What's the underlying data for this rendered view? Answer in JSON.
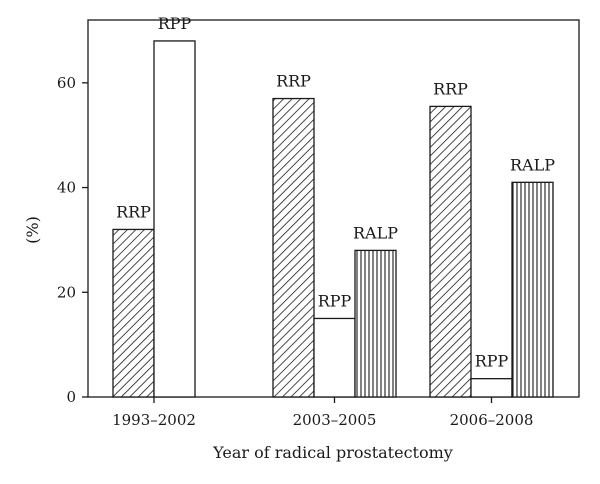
{
  "chart_data": {
    "type": "bar",
    "title": "",
    "xlabel": "Year of radical prostatectomy",
    "ylabel": "(%)",
    "ylim": [
      0,
      72
    ],
    "yticks": [
      0,
      20,
      40,
      60
    ],
    "grid": false,
    "categories": [
      "1993–2002",
      "2003–2005",
      "2006–2008"
    ],
    "groups": [
      {
        "category": "1993–2002",
        "bars": [
          {
            "series": "RRP",
            "label": "RRP",
            "value": 32,
            "pattern": "diagonal-hatch"
          },
          {
            "series": "RPP",
            "label": "RPP",
            "value": 68,
            "pattern": "none"
          }
        ]
      },
      {
        "category": "2003–2005",
        "bars": [
          {
            "series": "RRP",
            "label": "RRP",
            "value": 57,
            "pattern": "diagonal-hatch"
          },
          {
            "series": "RPP",
            "label": "RPP",
            "value": 15,
            "pattern": "none"
          },
          {
            "series": "RALP",
            "label": "RALP",
            "value": 28,
            "pattern": "vertical-hatch"
          }
        ]
      },
      {
        "category": "2006–2008",
        "bars": [
          {
            "series": "RRP",
            "label": "RRP",
            "value": 55.5,
            "pattern": "diagonal-hatch"
          },
          {
            "series": "RPP",
            "label": "RPP",
            "value": 3.5,
            "pattern": "none"
          },
          {
            "series": "RALP",
            "label": "RALP",
            "value": 41,
            "pattern": "vertical-hatch"
          }
        ]
      }
    ]
  }
}
